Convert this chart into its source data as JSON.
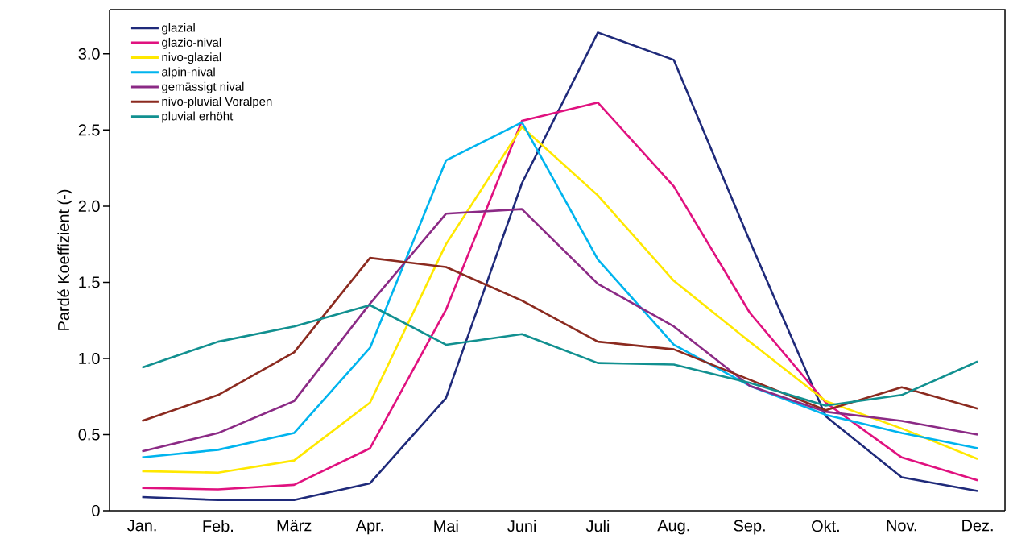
{
  "chart_data": {
    "type": "line",
    "ylabel": "Pardé Koeffizient (-)",
    "categories": [
      "Jan.",
      "Feb.",
      "März",
      "Apr.",
      "Mai",
      "Juni",
      "Juli",
      "Aug.",
      "Sep.",
      "Okt.",
      "Nov.",
      "Dez."
    ],
    "series": [
      {
        "name": "glazial",
        "color": "#1f2a7a",
        "values": [
          0.09,
          0.07,
          0.07,
          0.18,
          0.74,
          2.15,
          3.14,
          2.96,
          1.77,
          0.62,
          0.22,
          0.13
        ]
      },
      {
        "name": "glazio-nival",
        "color": "#e0117f",
        "values": [
          0.15,
          0.14,
          0.17,
          0.41,
          1.32,
          2.56,
          2.68,
          2.13,
          1.3,
          0.71,
          0.35,
          0.2
        ]
      },
      {
        "name": "nivo-glazial",
        "color": "#ffe800",
        "values": [
          0.26,
          0.25,
          0.33,
          0.71,
          1.75,
          2.52,
          2.07,
          1.51,
          1.11,
          0.72,
          0.54,
          0.34
        ]
      },
      {
        "name": "alpin-nival",
        "color": "#00b4ee",
        "values": [
          0.35,
          0.4,
          0.51,
          1.07,
          2.3,
          2.55,
          1.65,
          1.09,
          0.82,
          0.63,
          0.51,
          0.41
        ]
      },
      {
        "name": "gemässigt nival",
        "color": "#8b2a85",
        "values": [
          0.39,
          0.51,
          0.72,
          1.36,
          1.95,
          1.98,
          1.49,
          1.21,
          0.82,
          0.65,
          0.59,
          0.5
        ]
      },
      {
        "name": "nivo-pluvial Voralpen",
        "color": "#8b2a1f",
        "values": [
          0.59,
          0.76,
          1.04,
          1.66,
          1.6,
          1.38,
          1.11,
          1.06,
          0.86,
          0.66,
          0.81,
          0.67
        ]
      },
      {
        "name": "pluvial erhöht",
        "color": "#119090",
        "values": [
          0.94,
          1.11,
          1.21,
          1.35,
          1.09,
          1.16,
          0.97,
          0.96,
          0.84,
          0.69,
          0.76,
          0.98
        ]
      }
    ],
    "ylim": [
      0,
      3.29
    ],
    "yticks": [
      0,
      {
        "value": 0.5,
        "label": "0.5"
      },
      {
        "value": 1,
        "label": "1.0"
      },
      {
        "value": 1.5,
        "label": "1.5"
      },
      {
        "value": 2,
        "label": "2.0"
      },
      {
        "value": 2.5,
        "label": "2.5"
      },
      {
        "value": 3,
        "label": "3.0"
      }
    ],
    "legend": "top left",
    "grid": false,
    "marker": "none",
    "line_style": "solid"
  }
}
